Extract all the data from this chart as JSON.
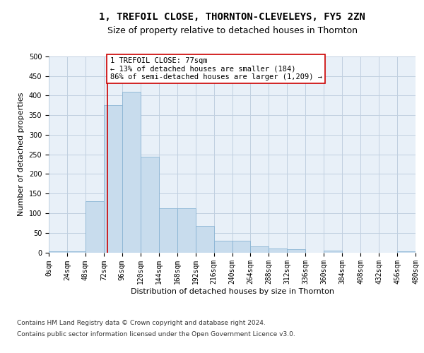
{
  "title": "1, TREFOIL CLOSE, THORNTON-CLEVELEYS, FY5 2ZN",
  "subtitle": "Size of property relative to detached houses in Thornton",
  "xlabel": "Distribution of detached houses by size in Thornton",
  "ylabel": "Number of detached properties",
  "bar_color": "#c8dced",
  "bar_edge_color": "#8ab4d4",
  "grid_color": "#c0d0e0",
  "background_color": "#e8f0f8",
  "annotation_box_color": "#cc0000",
  "annotation_text": "1 TREFOIL CLOSE: 77sqm\n← 13% of detached houses are smaller (184)\n86% of semi-detached houses are larger (1,209) →",
  "vline_x": 77,
  "vline_color": "#cc0000",
  "bin_width": 24,
  "bin_starts": [
    0,
    24,
    48,
    72,
    96,
    120,
    144,
    168,
    192,
    216,
    240,
    264,
    288,
    312,
    336,
    360,
    384,
    408,
    432,
    456
  ],
  "bar_heights": [
    3,
    3,
    130,
    375,
    410,
    245,
    113,
    113,
    67,
    30,
    30,
    15,
    10,
    8,
    0,
    5,
    0,
    0,
    0,
    3
  ],
  "ylim": [
    0,
    500
  ],
  "yticks": [
    0,
    50,
    100,
    150,
    200,
    250,
    300,
    350,
    400,
    450,
    500
  ],
  "xtick_labels": [
    "0sqm",
    "24sqm",
    "48sqm",
    "72sqm",
    "96sqm",
    "120sqm",
    "144sqm",
    "168sqm",
    "192sqm",
    "216sqm",
    "240sqm",
    "264sqm",
    "288sqm",
    "312sqm",
    "336sqm",
    "360sqm",
    "384sqm",
    "408sqm",
    "432sqm",
    "456sqm",
    "480sqm"
  ],
  "footer_line1": "Contains HM Land Registry data © Crown copyright and database right 2024.",
  "footer_line2": "Contains public sector information licensed under the Open Government Licence v3.0.",
  "title_fontsize": 10,
  "subtitle_fontsize": 9,
  "axis_label_fontsize": 8,
  "tick_fontsize": 7,
  "annotation_fontsize": 7.5,
  "footer_fontsize": 6.5
}
